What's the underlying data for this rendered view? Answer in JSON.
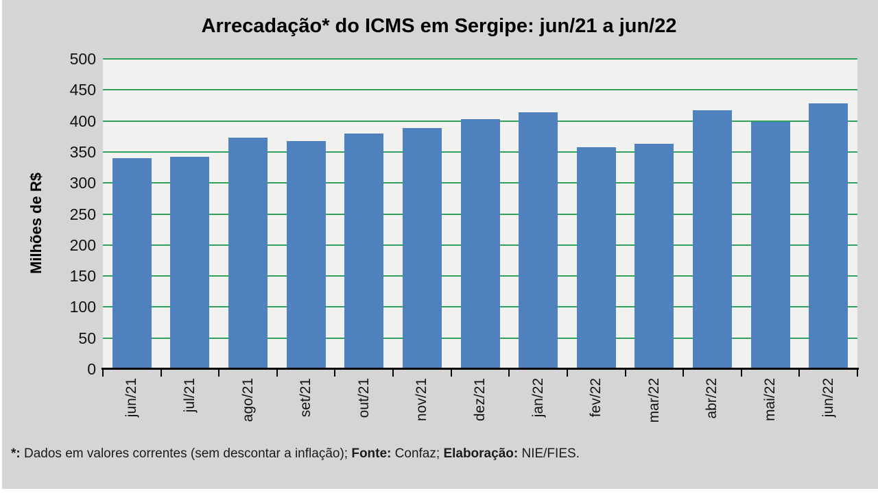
{
  "title": "Arrecadação* do ICMS em Sergipe: jun/21 a jun/22",
  "chart_data": {
    "type": "bar",
    "categories": [
      "jun/21",
      "jul/21",
      "ago/21",
      "set/21",
      "out/21",
      "nov/21",
      "dez/21",
      "jan/22",
      "fev/22",
      "mar/22",
      "abr/22",
      "mai/22",
      "jun/22"
    ],
    "values": [
      340,
      342,
      373,
      368,
      380,
      388,
      403,
      414,
      358,
      363,
      417,
      399,
      428
    ],
    "title": "Arrecadação* do ICMS em Sergipe: jun/21 a jun/22",
    "xlabel": "",
    "ylabel": "Milhões de R$",
    "ylim": [
      0,
      500
    ],
    "yticks": [
      0,
      50,
      100,
      150,
      200,
      250,
      300,
      350,
      400,
      450,
      500
    ],
    "grid": true,
    "legend": "none",
    "bar_color": "#4E81BD",
    "gridline_color": "#2FA05A",
    "plot_bg": "#F1F1EF",
    "slide_bg": "#D5D5D5",
    "axis_color": "#000000"
  },
  "footnote": {
    "segments": [
      {
        "text": "*:",
        "bold": true
      },
      {
        "text": " Dados em valores correntes (sem descontar a inflação); ",
        "bold": false
      },
      {
        "text": "Fonte:",
        "bold": true
      },
      {
        "text": " Confaz; ",
        "bold": false
      },
      {
        "text": "Elaboração:",
        "bold": true
      },
      {
        "text": " NIE/FIES.",
        "bold": false
      }
    ]
  }
}
